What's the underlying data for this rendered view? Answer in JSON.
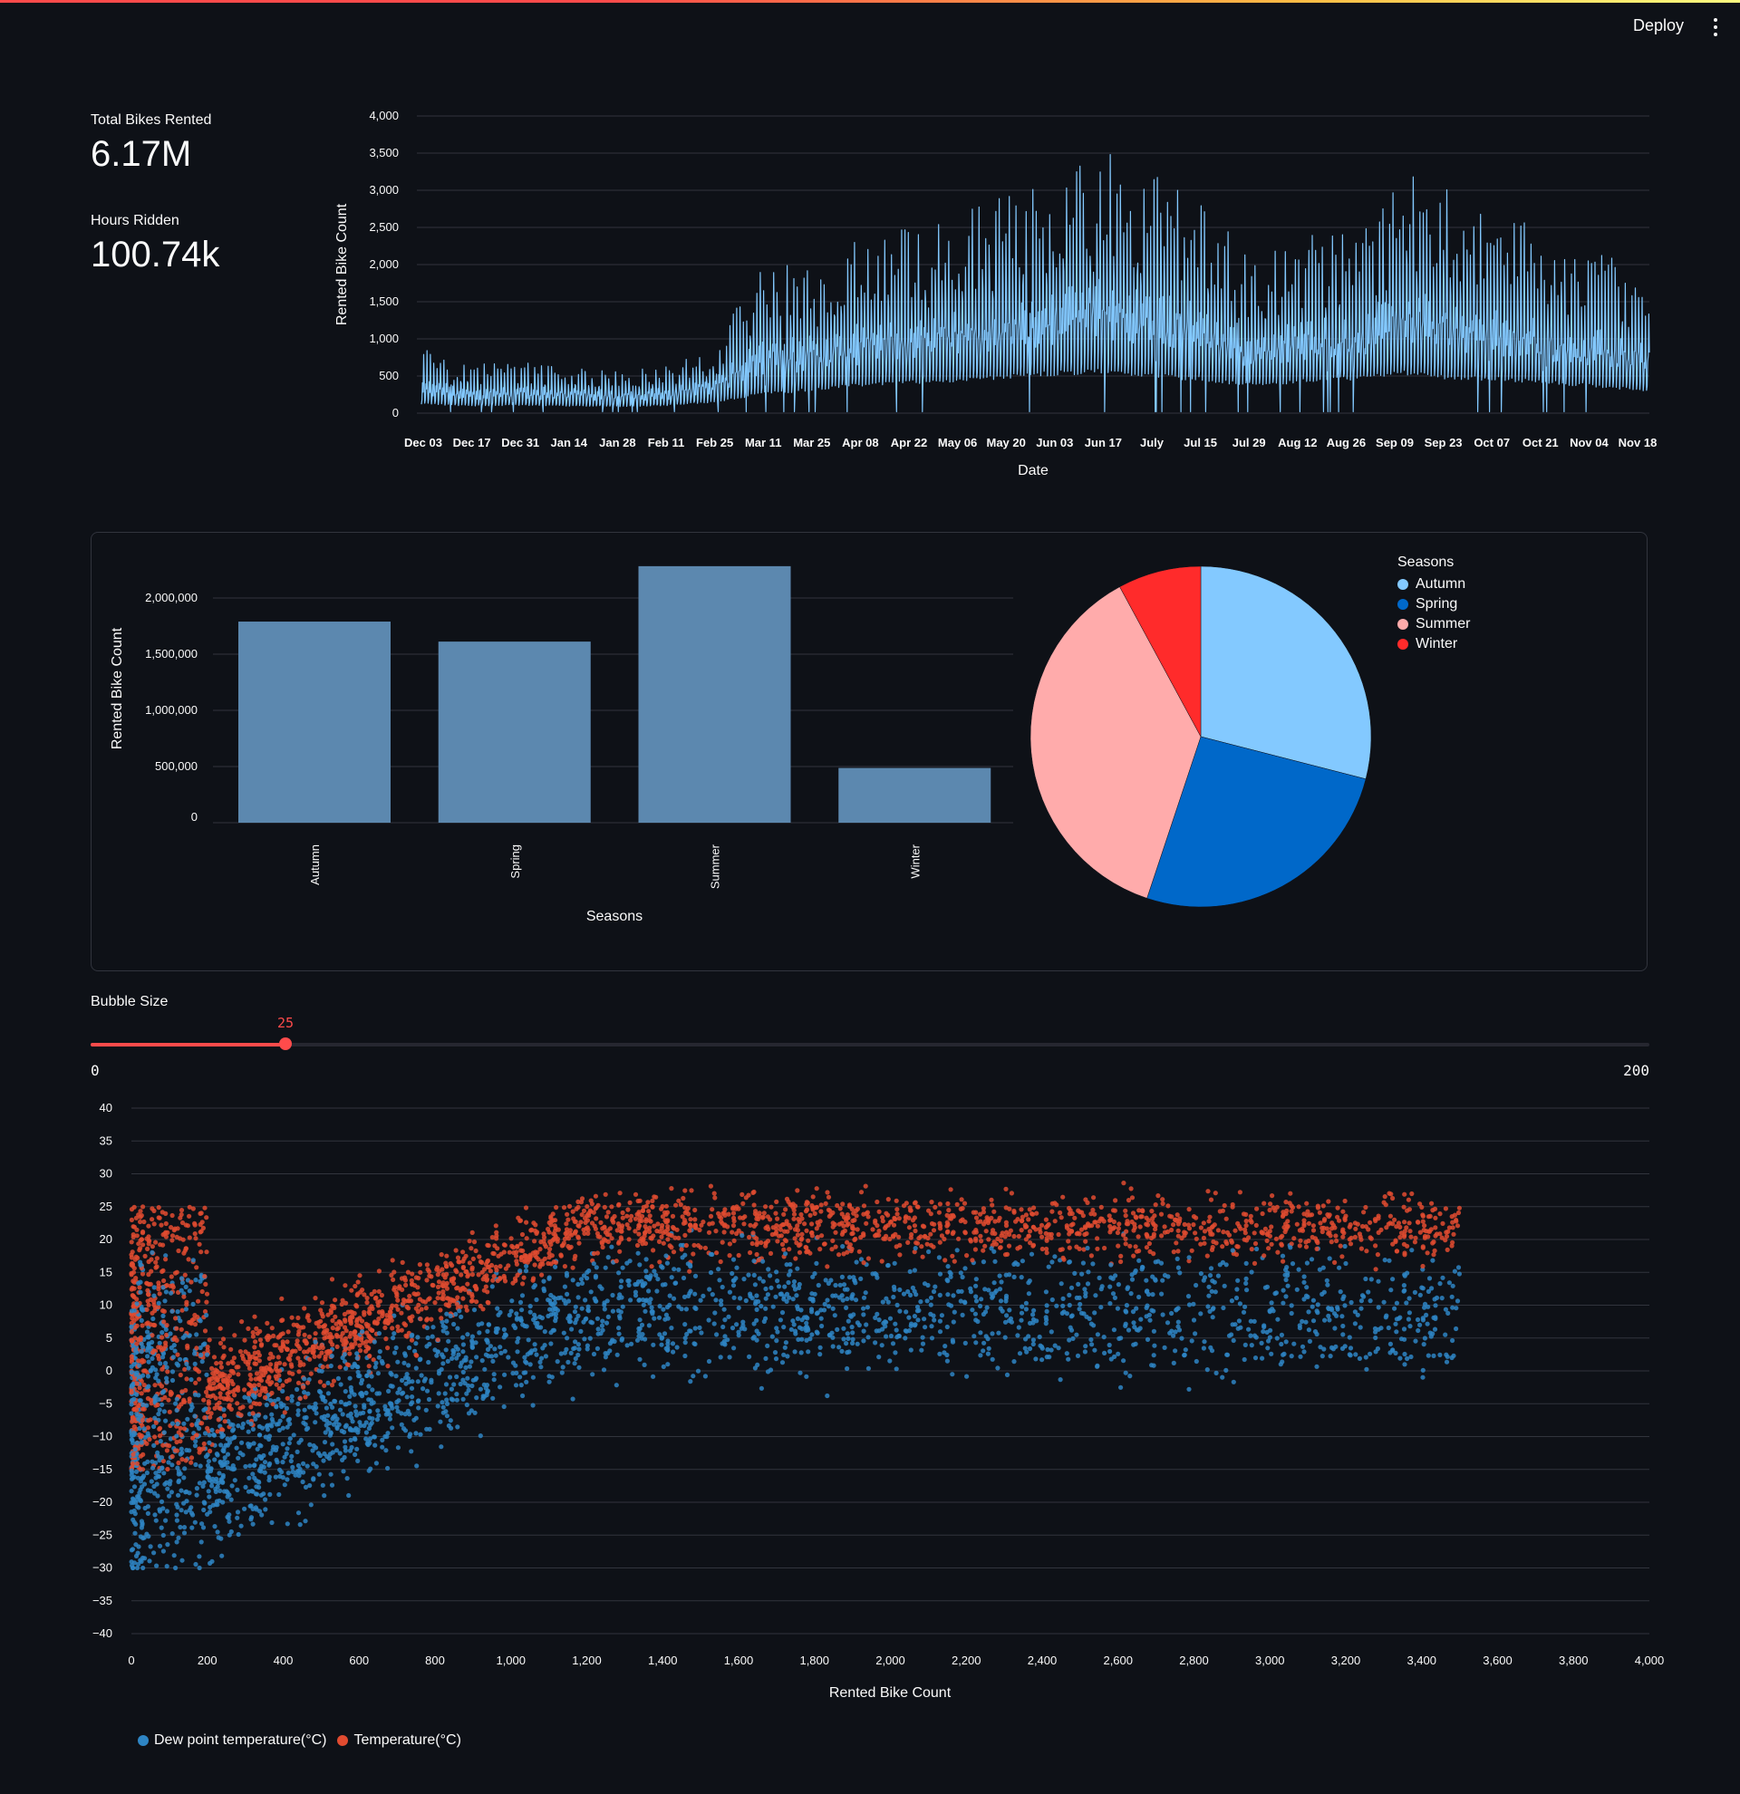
{
  "header": {
    "deploy_label": "Deploy",
    "menu_icon": "more-vertical-icon"
  },
  "metrics": [
    {
      "label": "Total Bikes Rented",
      "value": "6.17M"
    },
    {
      "label": "Hours Ridden",
      "value": "100.74k"
    }
  ],
  "slider": {
    "label": "Bubble Size",
    "value": 25,
    "min": 0,
    "max": 200,
    "value_text": "25",
    "min_text": "0",
    "max_text": "200",
    "accent": "#ff4b4b"
  },
  "chart_data": [
    {
      "type": "line",
      "xlabel": "Date",
      "ylabel": "Rented Bike Count",
      "ylim": [
        0,
        4000
      ],
      "yticks": [
        "0",
        "500",
        "1,000",
        "1,500",
        "2,000",
        "2,500",
        "3,000",
        "3,500",
        "4,000"
      ],
      "xticks": [
        "Dec 03",
        "Dec 17",
        "Dec 31",
        "Jan 14",
        "Jan 28",
        "Feb 11",
        "Feb 25",
        "Mar 11",
        "Mar 25",
        "Apr 08",
        "Apr 22",
        "May 06",
        "May 20",
        "Jun 03",
        "Jun 17",
        "July",
        "Jul 15",
        "Jul 29",
        "Aug 12",
        "Aug 26",
        "Sep 09",
        "Sep 23",
        "Oct 07",
        "Oct 21",
        "Nov 04",
        "Nov 18"
      ],
      "color": "#83c9ff",
      "grid": true,
      "series_description": "hourly counts, approximate envelope",
      "x": [
        "Dec 03",
        "Dec 17",
        "Dec 31",
        "Jan 14",
        "Jan 28",
        "Feb 11",
        "Feb 25",
        "Mar 11",
        "Mar 25",
        "Apr 08",
        "Apr 22",
        "May 06",
        "May 20",
        "Jun 03",
        "Jun 17",
        "July",
        "Jul 15",
        "Jul 29",
        "Aug 12",
        "Aug 26",
        "Sep 09",
        "Sep 23",
        "Oct 07",
        "Oct 21",
        "Nov 04",
        "Nov 18"
      ],
      "daily_peak": [
        900,
        650,
        700,
        650,
        600,
        650,
        950,
        2100,
        2000,
        2400,
        2500,
        2700,
        3000,
        3300,
        3500,
        3200,
        2800,
        2000,
        2500,
        2400,
        3300,
        3000,
        2700,
        2400,
        2200,
        1800
      ],
      "daily_mean": [
        250,
        200,
        220,
        200,
        180,
        220,
        320,
        500,
        650,
        780,
        850,
        900,
        1000,
        1100,
        1150,
        1000,
        900,
        800,
        900,
        1000,
        1100,
        950,
        950,
        850,
        750,
        600
      ]
    },
    {
      "type": "bar",
      "categories": [
        "Autumn",
        "Spring",
        "Summer",
        "Winter"
      ],
      "values": [
        1790002,
        1611909,
        2283234,
        487169
      ],
      "xlabel": "Seasons",
      "ylabel": "Rented Bike Count",
      "yticks": [
        "0",
        "500,000",
        "1,000,000",
        "1,500,000",
        "2,000,000"
      ],
      "ylim": [
        0,
        2300000
      ],
      "color": "#5c88af",
      "grid": true
    },
    {
      "type": "pie",
      "legend_title": "Seasons",
      "legend_position": "top-right",
      "labels": [
        "Autumn",
        "Spring",
        "Summer",
        "Winter"
      ],
      "values": [
        1790002,
        1611909,
        2283234,
        487169
      ],
      "colors": [
        "#83c9ff",
        "#0068c9",
        "#ffabab",
        "#ff2b2b"
      ]
    },
    {
      "type": "scatter",
      "xlabel": "Rented Bike Count",
      "xlim": [
        0,
        4000
      ],
      "ylim": [
        -40,
        40
      ],
      "xticks": [
        "0",
        "200",
        "400",
        "600",
        "800",
        "1,000",
        "1,200",
        "1,400",
        "1,600",
        "1,800",
        "2,000",
        "2,200",
        "2,400",
        "2,600",
        "2,800",
        "3,000",
        "3,200",
        "3,400",
        "3,600",
        "3,800",
        "4,000"
      ],
      "yticks": [
        "40",
        "35",
        "30",
        "25",
        "20",
        "15",
        "10",
        "5",
        "0",
        "−5",
        "−10",
        "−15",
        "−20",
        "−25",
        "−30",
        "−35",
        "−40"
      ],
      "series": [
        {
          "name": "Dew point temperature(°C)",
          "color": "#2e85c4"
        },
        {
          "name": "Temperature(°C)",
          "color": "#e14b30"
        }
      ],
      "grid": true,
      "legend_position": "bottom-left"
    }
  ]
}
